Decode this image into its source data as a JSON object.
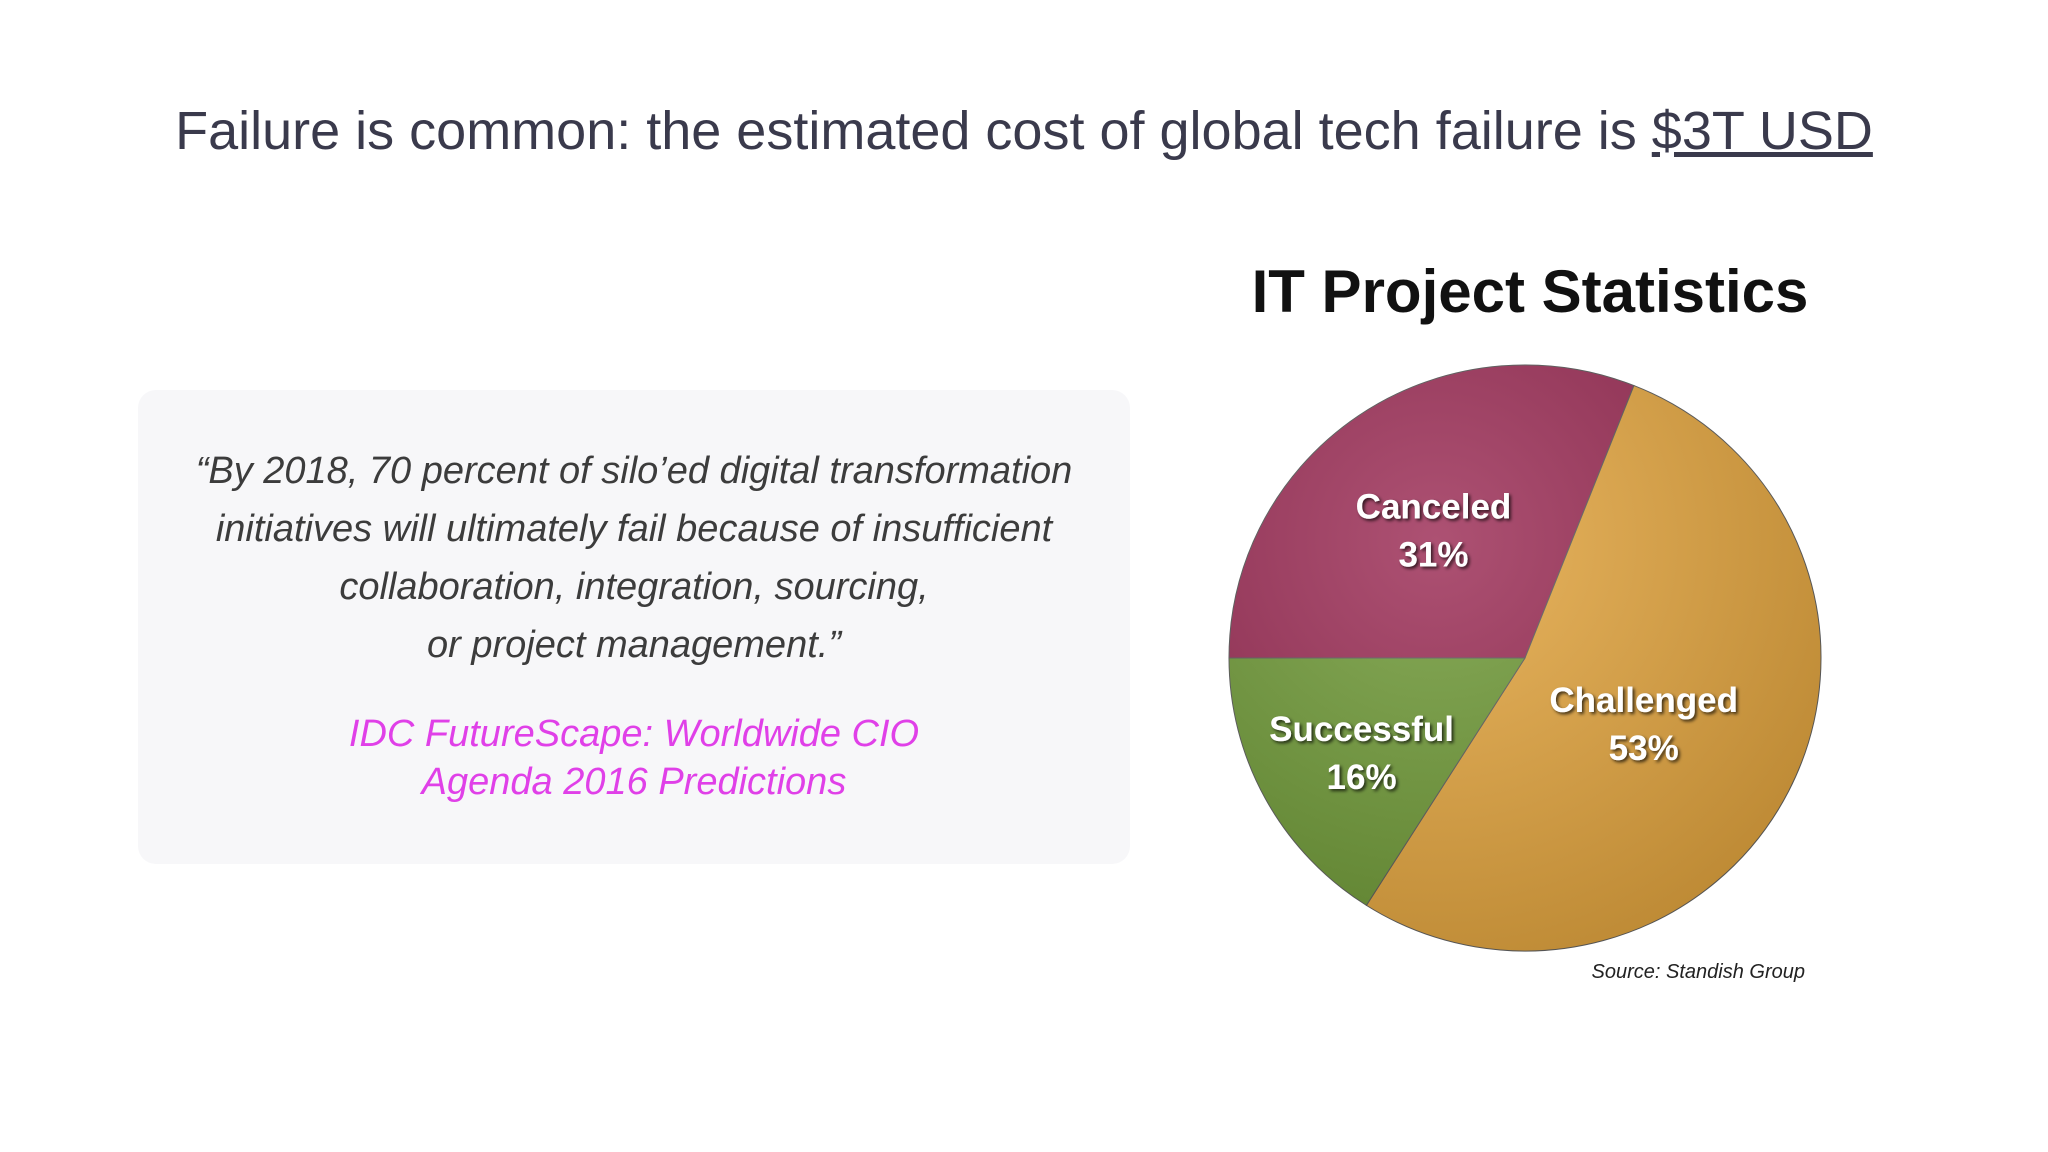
{
  "slide": {
    "title_prefix": "Failure is common: the estimated cost of global tech failure is ",
    "title_link": "$3T USD"
  },
  "quote": {
    "lines": [
      "“By 2018, 70 percent of silo’ed digital transformation",
      "initiatives will ultimately fail because of insufficient",
      "collaboration, integration, sourcing,",
      "or project management.”"
    ],
    "source_lines": [
      "IDC FutureScape: Worldwide CIO",
      "Agenda 2016 Predictions"
    ],
    "source_color": "#e040e8"
  },
  "chart_data": {
    "type": "pie",
    "title": "IT Project Statistics",
    "categories": [
      "Canceled",
      "Challenged",
      "Successful"
    ],
    "values": [
      31,
      53,
      16
    ],
    "value_labels": [
      "31%",
      "53%",
      "16%"
    ],
    "colors": [
      "#9b2b54",
      "#e5a63e",
      "#6f9a36"
    ],
    "source": "Source: Standish Group",
    "legend": "none"
  }
}
